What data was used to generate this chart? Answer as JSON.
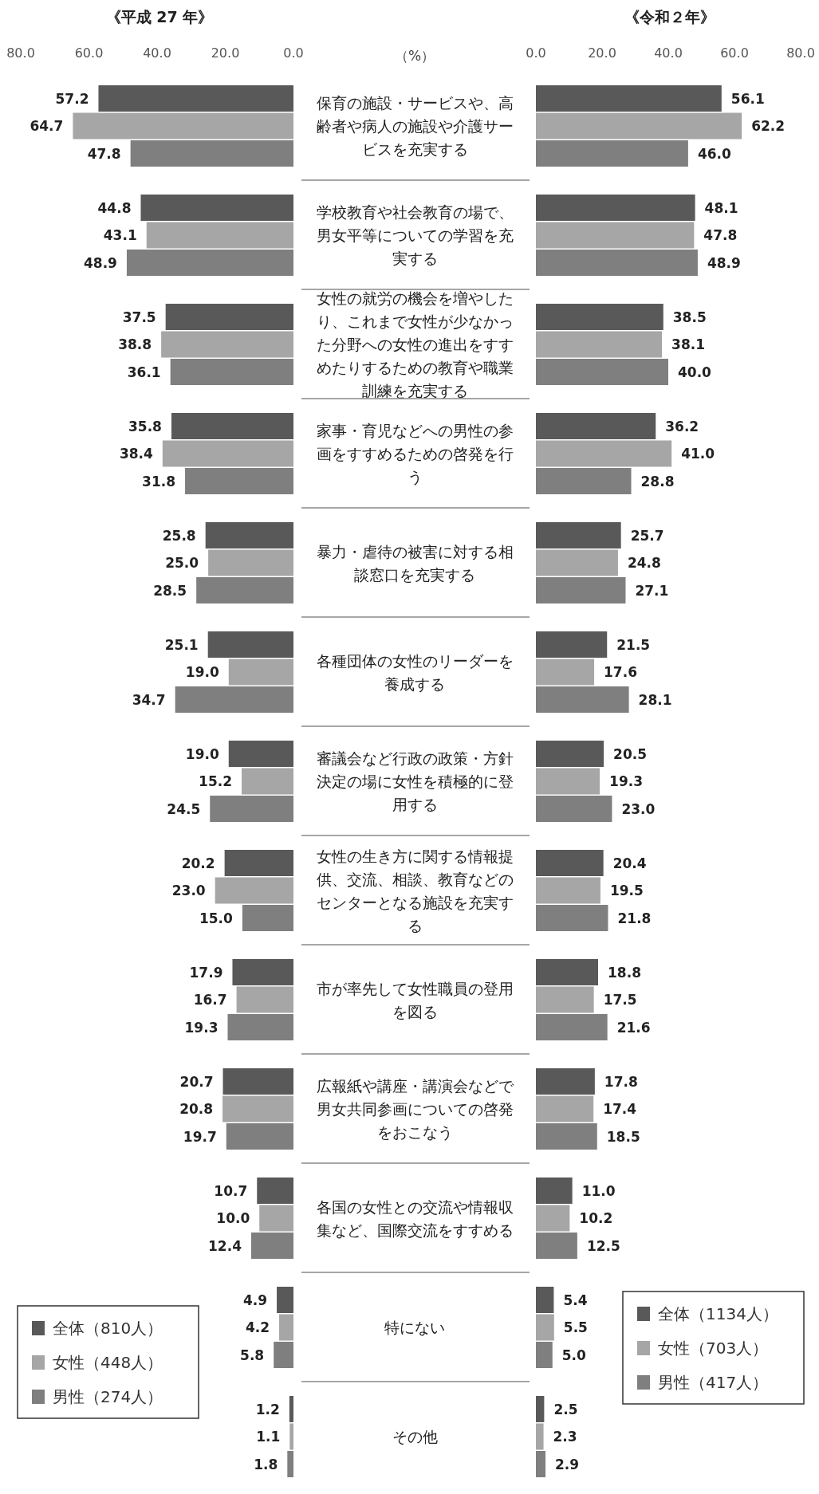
{
  "chart_data": [
    {
      "type": "bar",
      "orientation": "horizontal",
      "title": "《平成 27 年》",
      "annotations": [
        "（%）"
      ],
      "legend": "bottom left",
      "categories": [
        "保育の施設・サービスや、高齢者や病人の施設や介護サービスを充実する",
        "学校教育や社会教育の場で、男女平等についての学習を充実する",
        "女性の就労の機会を増やしたり、これまで女性が少なかった分野への女性の進出をすすめたりするための教育や職業訓練を充実する",
        "家事・育児などへの男性の参画をすすめるための啓発を行う",
        "暴力・虐待の被害に対する相談窓口を充実する",
        "各種団体の女性のリーダーを養成する",
        "審議会など行政の政策・方針決定の場に女性を積極的に登用する",
        "女性の生き方に関する情報提供、交流、相談、教育などのセンターとなる施設を充実する",
        "市が率先して女性職員の登用を図る",
        "広報紙や講座・講演会などで男女共同参画についての啓発をおこなう",
        "各国の女性との交流や情報収集など、国際交流をすすめる",
        "特にない",
        "その他"
      ],
      "xlim": [
        80,
        0
      ],
      "xticks": [
        {
          "value": 80,
          "label": "80.0"
        },
        {
          "value": 60,
          "label": "60.0"
        },
        {
          "value": 40,
          "label": "40.0"
        },
        {
          "value": 20,
          "label": "20.0"
        },
        {
          "value": 0,
          "label": "0.0"
        }
      ],
      "series": [
        {
          "name": "全体（810人）",
          "color": "#595959",
          "values": [
            57.2,
            44.8,
            37.5,
            35.8,
            25.8,
            25.1,
            19.0,
            20.2,
            17.9,
            20.7,
            10.7,
            4.9,
            1.2
          ],
          "value_labels": [
            "57.2",
            "44.8",
            "37.5",
            "35.8",
            "25.8",
            "25.1",
            "19.0",
            "20.2",
            "17.9",
            "20.7",
            "10.7",
            "4.9",
            "1.2"
          ]
        },
        {
          "name": "女性（448人）",
          "color": "#a6a6a6",
          "values": [
            64.7,
            43.1,
            38.8,
            38.4,
            25.0,
            19.0,
            15.2,
            23.0,
            16.7,
            20.8,
            10.0,
            4.2,
            1.1
          ],
          "value_labels": [
            "64.7",
            "43.1",
            "38.8",
            "38.4",
            "25.0",
            "19.0",
            "15.2",
            "23.0",
            "16.7",
            "20.8",
            "10.0",
            "4.2",
            "1.1"
          ]
        },
        {
          "name": "男性（274人）",
          "color": "#7f7f7f",
          "values": [
            47.8,
            48.9,
            36.1,
            31.8,
            28.5,
            34.7,
            24.5,
            15.0,
            19.3,
            19.7,
            12.4,
            5.8,
            1.8
          ],
          "value_labels": [
            "47.8",
            "48.9",
            "36.1",
            "31.8",
            "28.5",
            "34.7",
            "24.5",
            "15.0",
            "19.3",
            "19.7",
            "12.4",
            "5.8",
            "1.8"
          ]
        }
      ]
    },
    {
      "type": "bar",
      "orientation": "horizontal",
      "title": "《令和２年》",
      "legend": "bottom right",
      "xlim": [
        0,
        80
      ],
      "xticks": [
        {
          "value": 0,
          "label": "0.0"
        },
        {
          "value": 20,
          "label": "20.0"
        },
        {
          "value": 40,
          "label": "40.0"
        },
        {
          "value": 60,
          "label": "60.0"
        },
        {
          "value": 80,
          "label": "80.0"
        }
      ],
      "series": [
        {
          "name": "全体（1134人）",
          "color": "#595959",
          "values": [
            56.1,
            48.1,
            38.5,
            36.2,
            25.7,
            21.5,
            20.5,
            20.4,
            18.8,
            17.8,
            11.0,
            5.4,
            2.5
          ],
          "value_labels": [
            "56.1",
            "48.1",
            "38.5",
            "36.2",
            "25.7",
            "21.5",
            "20.5",
            "20.4",
            "18.8",
            "17.8",
            "11.0",
            "5.4",
            "2.5"
          ]
        },
        {
          "name": "女性（703人）",
          "color": "#a6a6a6",
          "values": [
            62.2,
            47.8,
            38.1,
            41.0,
            24.8,
            17.6,
            19.3,
            19.5,
            17.5,
            17.4,
            10.2,
            5.5,
            2.3
          ],
          "value_labels": [
            "62.2",
            "47.8",
            "38.1",
            "41.0",
            "24.8",
            "17.6",
            "19.3",
            "19.5",
            "17.5",
            "17.4",
            "10.2",
            "5.5",
            "2.3"
          ]
        },
        {
          "name": "男性（417人）",
          "color": "#7f7f7f",
          "values": [
            46.0,
            48.9,
            40.0,
            28.8,
            27.1,
            28.1,
            23.0,
            21.8,
            21.6,
            18.5,
            12.5,
            5.0,
            2.9
          ],
          "value_labels": [
            "46.0",
            "48.9",
            "40.0",
            "28.8",
            "27.1",
            "28.1",
            "23.0",
            "21.8",
            "21.6",
            "18.5",
            "12.5",
            "5.0",
            "2.9"
          ]
        }
      ]
    }
  ]
}
